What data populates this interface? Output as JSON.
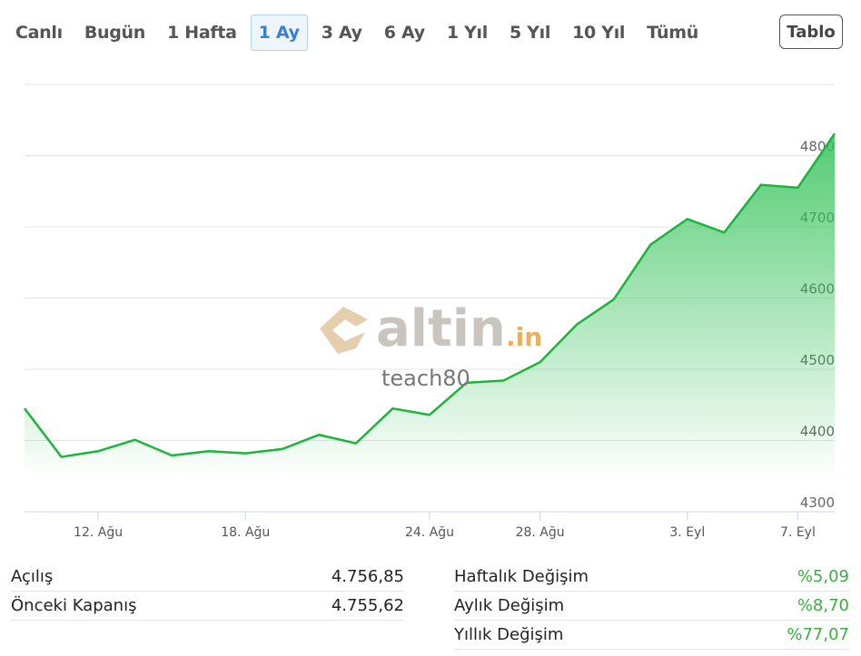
{
  "tabs": [
    "Canlı",
    "Bugün",
    "1 Hafta",
    "1 Ay",
    "3 Ay",
    "6 Ay",
    "1 Yıl",
    "5 Yıl",
    "10 Yıl",
    "Tümü"
  ],
  "active_tab": 3,
  "table_button": "Tablo",
  "watermark": {
    "brand": "altin",
    "suffix": ".in",
    "user": "teach80"
  },
  "chart_data": {
    "type": "area",
    "categories": [
      null,
      null,
      "12. Ağu",
      null,
      null,
      null,
      "18. Ağu",
      null,
      null,
      null,
      null,
      "24. Ağu",
      null,
      null,
      "28. Ağu",
      null,
      null,
      null,
      "3. Eyl",
      null,
      null,
      "7. Eyl",
      null
    ],
    "values": [
      4445,
      4377,
      4385,
      4401,
      4379,
      4385,
      4382,
      4388,
      4408,
      4396,
      4445,
      4436,
      4481,
      4484,
      4510,
      4563,
      4598,
      4675,
      4711,
      4692,
      4759,
      4755,
      4831
    ],
    "color": "#1db33c",
    "ylim": [
      4300,
      4900
    ],
    "yticks": [
      4300,
      4400,
      4500,
      4600,
      4700,
      4800
    ],
    "grid": true
  },
  "stats": {
    "left": [
      [
        "Açılış",
        "4.756,85"
      ],
      [
        "Önceki Kapanış",
        "4.755,62"
      ]
    ],
    "right": [
      [
        "Haftalık Değişim",
        "%5,09"
      ],
      [
        "Aylık Değişim",
        "%8,70"
      ],
      [
        "Yıllık Değişim",
        "%77,07"
      ]
    ]
  }
}
